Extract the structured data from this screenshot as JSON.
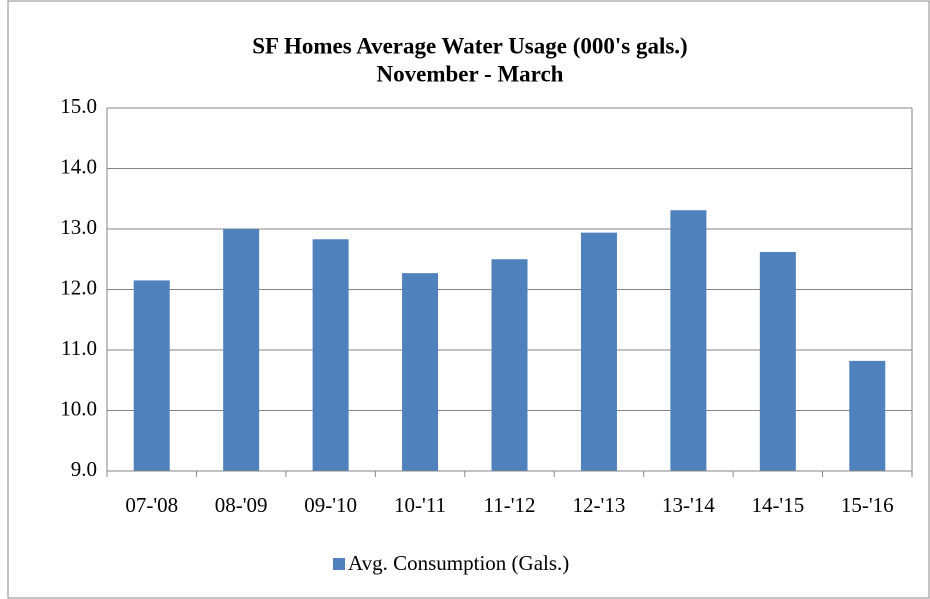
{
  "chart_data": {
    "type": "bar",
    "title": "SF Homes Average Water Usage (000's gals.)",
    "subtitle": "November - March",
    "categories": [
      "07-'08",
      "08-'09",
      "09-'10",
      "10-'11",
      "11-'12",
      "12-'13",
      "13-'14",
      "14-'15",
      "15-'16"
    ],
    "series": [
      {
        "name": "Avg. Consumption (Gals.)",
        "color": "#4f81bd",
        "values": [
          12.15,
          13.0,
          12.83,
          12.27,
          12.5,
          12.94,
          13.31,
          12.62,
          10.82
        ]
      }
    ],
    "ylim": [
      9,
      15
    ],
    "yticks": [
      {
        "value": 9,
        "label": "9.0"
      },
      {
        "value": 10,
        "label": "10.0"
      },
      {
        "value": 11,
        "label": "11.0"
      },
      {
        "value": 12,
        "label": "12.0"
      },
      {
        "value": 13,
        "label": "13.0"
      },
      {
        "value": 14,
        "label": "14.0"
      },
      {
        "value": 15,
        "label": "15.0"
      }
    ],
    "grid": true,
    "legend": "bottom"
  }
}
